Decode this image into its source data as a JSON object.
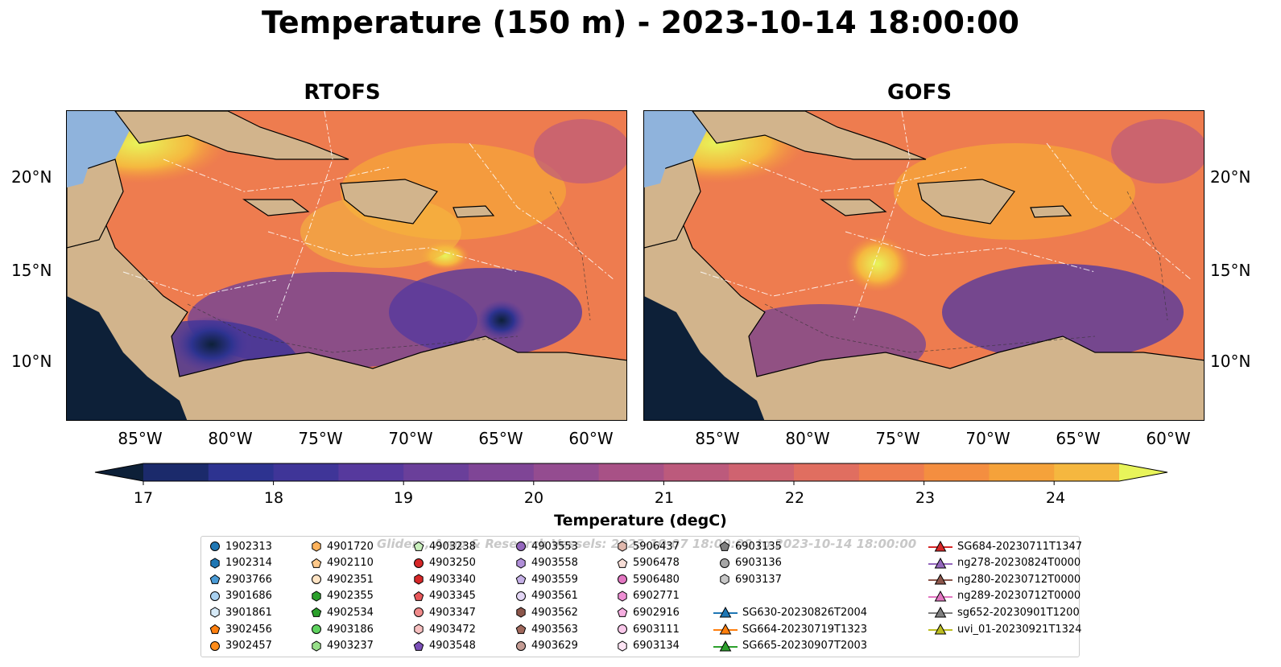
{
  "title": "Temperature (150 m) - 2023-10-14 18:00:00",
  "panels": [
    {
      "title": "RTOFS"
    },
    {
      "title": "GOFS"
    }
  ],
  "lat_labels": [
    "20°N",
    "15°N",
    "10°N"
  ],
  "lon_labels": [
    "85°W",
    "80°W",
    "75°W",
    "70°W",
    "65°W",
    "60°W"
  ],
  "colorbar": {
    "label": "Temperature (degC)",
    "ticks": [
      "17",
      "18",
      "19",
      "20",
      "21",
      "22",
      "23",
      "24"
    ],
    "min": 17,
    "max": 24.5,
    "step": 0.5,
    "extend": "both",
    "colors": [
      "#0d2038",
      "#1b2a6b",
      "#2d3390",
      "#3f3598",
      "#56399d",
      "#6a3f9a",
      "#7f4596",
      "#944c90",
      "#a85186",
      "#bc5a7c",
      "#cf6370",
      "#e06e60",
      "#ee7c4f",
      "#f48e40",
      "#f5a23a",
      "#f5b73f",
      "#f1d058",
      "#e8f45a"
    ]
  },
  "legend": {
    "watermark": "Gliders, Argo & Research Vessels: 2023-10-07 18:00:00 to 2023-10-14 18:00:00",
    "items": [
      {
        "label": "1902313",
        "marker": "circle",
        "color": "#1f77b4"
      },
      {
        "label": "1902314",
        "marker": "hexagon",
        "color": "#1f77b4"
      },
      {
        "label": "2903766",
        "marker": "pentagon",
        "color": "#4a9bd6"
      },
      {
        "label": "3901686",
        "marker": "circle",
        "color": "#a9d1f0"
      },
      {
        "label": "3901861",
        "marker": "hexagon",
        "color": "#d6eaf8"
      },
      {
        "label": "3902456",
        "marker": "pentagon",
        "color": "#ff7f0e"
      },
      {
        "label": "3902457",
        "marker": "circle",
        "color": "#ff8c1a"
      },
      {
        "label": "4901720",
        "marker": "hexagon",
        "color": "#ffb35c"
      },
      {
        "label": "4902110",
        "marker": "pentagon",
        "color": "#ffc98a"
      },
      {
        "label": "4902351",
        "marker": "circle",
        "color": "#ffe4c4"
      },
      {
        "label": "4902355",
        "marker": "hexagon",
        "color": "#2ca02c"
      },
      {
        "label": "4902534",
        "marker": "pentagon",
        "color": "#2ca02c"
      },
      {
        "label": "4903186",
        "marker": "circle",
        "color": "#5fd35f"
      },
      {
        "label": "4903237",
        "marker": "hexagon",
        "color": "#98df8a"
      },
      {
        "label": "4903238",
        "marker": "pentagon",
        "color": "#c9f0bd"
      },
      {
        "label": "4903250",
        "marker": "circle",
        "color": "#d62728"
      },
      {
        "label": "4903340",
        "marker": "hexagon",
        "color": "#d62728"
      },
      {
        "label": "4903345",
        "marker": "pentagon",
        "color": "#e8575a"
      },
      {
        "label": "4903347",
        "marker": "circle",
        "color": "#f08a8a"
      },
      {
        "label": "4903472",
        "marker": "hexagon",
        "color": "#f7c0c0"
      },
      {
        "label": "4903548",
        "marker": "pentagon",
        "color": "#7b4fb8"
      },
      {
        "label": "4903553",
        "marker": "circle",
        "color": "#9467bd"
      },
      {
        "label": "4903558",
        "marker": "hexagon",
        "color": "#b08fd8"
      },
      {
        "label": "4903559",
        "marker": "pentagon",
        "color": "#c5b0e6"
      },
      {
        "label": "4903561",
        "marker": "circle",
        "color": "#e3d6f5"
      },
      {
        "label": "4903562",
        "marker": "hexagon",
        "color": "#8c564b"
      },
      {
        "label": "4903563",
        "marker": "pentagon",
        "color": "#a0685c"
      },
      {
        "label": "4903629",
        "marker": "circle",
        "color": "#c49c94"
      },
      {
        "label": "5906437",
        "marker": "hexagon",
        "color": "#e0b8ad"
      },
      {
        "label": "5906478",
        "marker": "pentagon",
        "color": "#f7ddd6"
      },
      {
        "label": "5906480",
        "marker": "circle",
        "color": "#e377c2"
      },
      {
        "label": "6902771",
        "marker": "hexagon",
        "color": "#ee8fd4"
      },
      {
        "label": "6902916",
        "marker": "pentagon",
        "color": "#f5aee0"
      },
      {
        "label": "6903111",
        "marker": "circle",
        "color": "#f9c8ea"
      },
      {
        "label": "6903134",
        "marker": "hexagon",
        "color": "#fde4f4"
      },
      {
        "label": "6903135",
        "marker": "pentagon",
        "color": "#7f7f7f"
      },
      {
        "label": "6903136",
        "marker": "circle",
        "color": "#a6a6a6"
      },
      {
        "label": "6903137",
        "marker": "hexagon",
        "color": "#c7c7c7"
      },
      {
        "label": "SG630-20230826T2004",
        "marker": "triangle",
        "color": "#1f77b4"
      },
      {
        "label": "SG664-20230719T1323",
        "marker": "triangle",
        "color": "#ff7f0e"
      },
      {
        "label": "SG665-20230907T2003",
        "marker": "triangle",
        "color": "#2ca02c"
      },
      {
        "label": "SG684-20230711T1347",
        "marker": "triangle",
        "color": "#d62728"
      },
      {
        "label": "ng278-20230824T0000",
        "marker": "triangle",
        "color": "#9467bd"
      },
      {
        "label": "ng280-20230712T0000",
        "marker": "triangle",
        "color": "#8c564b"
      },
      {
        "label": "ng289-20230712T0000",
        "marker": "triangle",
        "color": "#e377c2"
      },
      {
        "label": "sg652-20230901T1200",
        "marker": "triangle",
        "color": "#7f7f7f"
      },
      {
        "label": "uvi_01-20230921T1324",
        "marker": "triangle",
        "color": "#bcbd22"
      }
    ]
  }
}
